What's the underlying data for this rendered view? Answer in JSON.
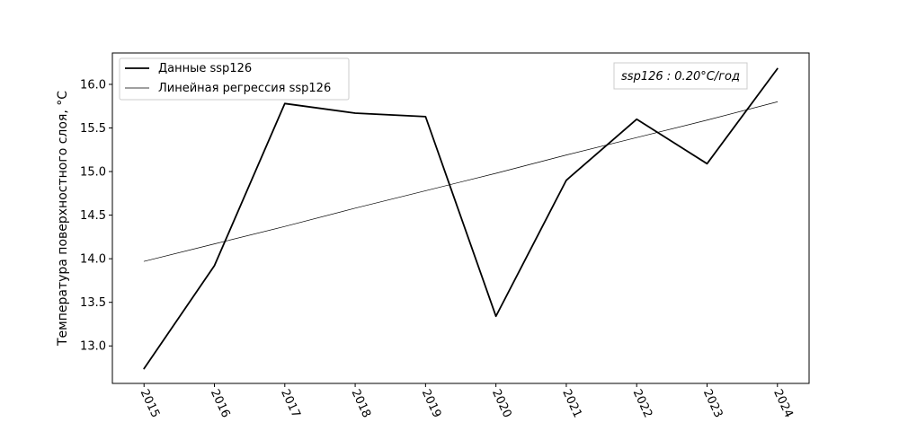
{
  "chart_data": {
    "type": "line",
    "title": "",
    "xlabel": "",
    "ylabel": "Температура поверхностного слоя, °C",
    "x": [
      2015,
      2016,
      2017,
      2018,
      2019,
      2020,
      2021,
      2022,
      2023,
      2024
    ],
    "x_tick_labels": [
      "2015",
      "2016",
      "2017",
      "2018",
      "2019",
      "2020",
      "2021",
      "2022",
      "2023",
      "2024"
    ],
    "y_ticks": [
      13.0,
      13.5,
      14.0,
      14.5,
      15.0,
      15.5,
      16.0
    ],
    "y_tick_labels": [
      "13.0",
      "13.5",
      "14.0",
      "14.5",
      "15.0",
      "15.5",
      "16.0"
    ],
    "xlim": [
      2014.55,
      2024.45
    ],
    "ylim": [
      12.57,
      16.36
    ],
    "grid": false,
    "legend_position": "top-left",
    "series": [
      {
        "name": "Данные ssp126",
        "values": [
          12.74,
          13.92,
          15.78,
          15.67,
          15.63,
          13.34,
          14.9,
          15.6,
          15.09,
          16.18
        ],
        "color": "#000000",
        "style": "solid"
      },
      {
        "name": "Линейная регрессия ssp126",
        "values": [
          13.97,
          14.17,
          14.37,
          14.58,
          14.78,
          14.98,
          15.19,
          15.39,
          15.59,
          15.8
        ],
        "color": "#000000",
        "style": "thin"
      }
    ],
    "annotation": {
      "text": "ssp126 : 0.20°C/год",
      "position": "top-right"
    }
  }
}
